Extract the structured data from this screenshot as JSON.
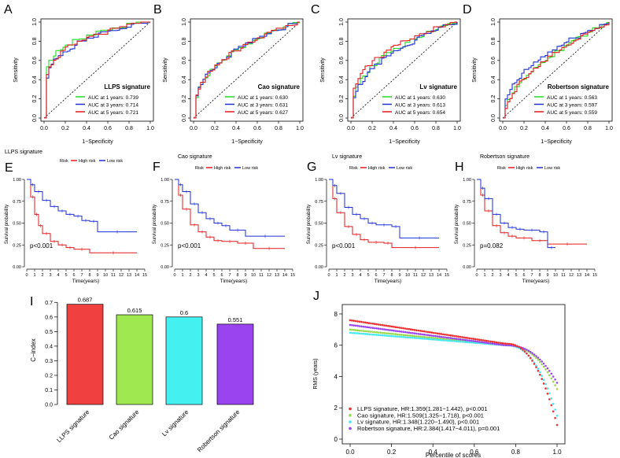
{
  "colors": {
    "green": "#22dd22",
    "blue": "#1f2fd6",
    "red": "#e41a1c",
    "bar_red": "#f04040",
    "bar_green": "#a0e850",
    "bar_cyan": "#44f0f0",
    "bar_purple": "#9a44f0",
    "rms_red": "#f03030",
    "rms_green": "#9ad84a",
    "rms_cyan": "#44e8ee",
    "rms_purple": "#9a44ee"
  },
  "roc": {
    "xlabel": "1−Specificity",
    "ylabel": "Sensitivity",
    "ticks": [
      "0.0",
      "0.2",
      "0.4",
      "0.6",
      "0.8",
      "1.0"
    ],
    "panels": [
      {
        "letter": "A",
        "title": "LLPS signature",
        "legend": [
          "AUC at 1 years: 0.739",
          "AUC at 3 years: 0.714",
          "AUC at 5 years: 0.721"
        ],
        "auc": [
          0.739,
          0.714,
          0.721
        ]
      },
      {
        "letter": "B",
        "title": "Cao signature",
        "legend": [
          "AUC at 1 years: 0.630",
          "AUC at 3 years: 0.631",
          "AUC at 5 years: 0.627"
        ],
        "auc": [
          0.63,
          0.631,
          0.627
        ]
      },
      {
        "letter": "C",
        "title": "Lv signature",
        "legend": [
          "AUC at 1 years: 0.630",
          "AUC at 3 years: 0.613",
          "AUC at 5 years: 0.654"
        ],
        "auc": [
          0.63,
          0.613,
          0.654
        ]
      },
      {
        "letter": "D",
        "title": "Robertson signature",
        "legend": [
          "AUC at 1 years: 0.563",
          "AUC at 3 years: 0.597",
          "AUC at 5 years: 0.559"
        ],
        "auc": [
          0.563,
          0.597,
          0.559
        ]
      }
    ]
  },
  "km": {
    "xlabel": "Time(years)",
    "ylabel": "Survival probability",
    "yticks": [
      "0.00",
      "0.25",
      "0.50",
      "0.75",
      "1.00"
    ],
    "xticks": [
      "0",
      "1",
      "2",
      "3",
      "4",
      "5",
      "6",
      "7",
      "8",
      "9",
      "10",
      "11",
      "12",
      "13",
      "14",
      "15"
    ],
    "legend_risk": "Risk",
    "legend_high": "High risk",
    "legend_low": "Low risk",
    "panels": [
      {
        "letter": "E",
        "title": "LLPS signature",
        "pvalue": "p<0.001",
        "high": [
          [
            0,
            1
          ],
          [
            0.5,
            0.8
          ],
          [
            1,
            0.6
          ],
          [
            1.5,
            0.47
          ],
          [
            2,
            0.38
          ],
          [
            3,
            0.29
          ],
          [
            4,
            0.25
          ],
          [
            5,
            0.22
          ],
          [
            6,
            0.2
          ],
          [
            8,
            0.16
          ],
          [
            14,
            0.16
          ]
        ],
        "low": [
          [
            0,
            1
          ],
          [
            0.5,
            0.94
          ],
          [
            1,
            0.86
          ],
          [
            2,
            0.76
          ],
          [
            3,
            0.69
          ],
          [
            4,
            0.64
          ],
          [
            5,
            0.6
          ],
          [
            6,
            0.58
          ],
          [
            7,
            0.53
          ],
          [
            8,
            0.52
          ],
          [
            9,
            0.4
          ],
          [
            14,
            0.4
          ]
        ]
      },
      {
        "letter": "F",
        "title": "Cao signature",
        "pvalue": "p<0.001",
        "high": [
          [
            0,
            1
          ],
          [
            0.5,
            0.82
          ],
          [
            1,
            0.66
          ],
          [
            2,
            0.48
          ],
          [
            3,
            0.4
          ],
          [
            4,
            0.34
          ],
          [
            5,
            0.3
          ],
          [
            6,
            0.29
          ],
          [
            8,
            0.27
          ],
          [
            10,
            0.21
          ],
          [
            14,
            0.21
          ]
        ],
        "low": [
          [
            0,
            1
          ],
          [
            0.5,
            0.94
          ],
          [
            1,
            0.86
          ],
          [
            2,
            0.72
          ],
          [
            3,
            0.62
          ],
          [
            4,
            0.55
          ],
          [
            5,
            0.5
          ],
          [
            6,
            0.47
          ],
          [
            7,
            0.42
          ],
          [
            9,
            0.35
          ],
          [
            14,
            0.35
          ]
        ]
      },
      {
        "letter": "G",
        "title": "Lv signature",
        "pvalue": "p<0.001",
        "high": [
          [
            0,
            1
          ],
          [
            0.5,
            0.78
          ],
          [
            1,
            0.62
          ],
          [
            2,
            0.46
          ],
          [
            3,
            0.37
          ],
          [
            4,
            0.31
          ],
          [
            5,
            0.28
          ],
          [
            7,
            0.27
          ],
          [
            8,
            0.22
          ],
          [
            14,
            0.22
          ]
        ],
        "low": [
          [
            0,
            1
          ],
          [
            0.5,
            0.93
          ],
          [
            1,
            0.84
          ],
          [
            2,
            0.68
          ],
          [
            3,
            0.6
          ],
          [
            4,
            0.55
          ],
          [
            5,
            0.5
          ],
          [
            6,
            0.48
          ],
          [
            8,
            0.46
          ],
          [
            9,
            0.33
          ],
          [
            14,
            0.33
          ]
        ]
      },
      {
        "letter": "H",
        "title": "Robertson signature",
        "pvalue": "p=0.082",
        "high": [
          [
            0,
            1
          ],
          [
            0.5,
            0.82
          ],
          [
            1,
            0.64
          ],
          [
            2,
            0.47
          ],
          [
            3,
            0.39
          ],
          [
            4,
            0.35
          ],
          [
            5,
            0.33
          ],
          [
            7,
            0.3
          ],
          [
            9,
            0.26
          ],
          [
            14,
            0.26
          ]
        ],
        "low": [
          [
            0,
            1
          ],
          [
            0.5,
            0.9
          ],
          [
            1,
            0.78
          ],
          [
            2,
            0.6
          ],
          [
            3,
            0.5
          ],
          [
            4,
            0.45
          ],
          [
            5,
            0.43
          ],
          [
            6,
            0.42
          ],
          [
            8,
            0.4
          ],
          [
            9,
            0.22
          ],
          [
            10,
            0.22
          ]
        ]
      }
    ]
  },
  "chart_data": [
    {
      "type": "bar",
      "panel": "I",
      "ylabel": "C−index",
      "categories": [
        "LLPS signature",
        "Cao signature",
        "Lv signature",
        "Robertson signature"
      ],
      "values": [
        0.687,
        0.615,
        0.6,
        0.551
      ],
      "labels": [
        "0.687",
        "0.615",
        "0.6",
        "0.551"
      ],
      "ylim": [
        0,
        0.75
      ],
      "yticks": [
        "0.0",
        "0.1",
        "0.2",
        "0.3",
        "0.4",
        "0.5",
        "0.6",
        "0.7"
      ]
    },
    {
      "type": "scatter",
      "panel": "J",
      "ylabel": "RMS (years)",
      "xlabel": "Percentile of scores",
      "xlim": [
        0,
        1
      ],
      "ylim": [
        0,
        8.3
      ],
      "xticks": [
        "0.0",
        "0.2",
        "0.4",
        "0.6",
        "0.8",
        "1.0"
      ],
      "yticks": [
        "0",
        "2",
        "4",
        "6",
        "8"
      ],
      "series": [
        {
          "name": "LLPS signature, HR:1.359(1.281−1.442), p<0.001",
          "start": 7.6,
          "mid": 6.1,
          "end": 0.9
        },
        {
          "name": "Cao signature, HR:1.509(1.325−1.718), p<0.001",
          "start": 7.0,
          "mid": 6.0,
          "end": 3.2
        },
        {
          "name": "Lv signature, HR:1.348(1.220−1.490), p<0.001",
          "start": 6.8,
          "mid": 6.0,
          "end": 1.5
        },
        {
          "name": "Robertson signature, HR:2.384(1.417−4.011), p=0.001",
          "start": 7.3,
          "mid": 6.0,
          "end": 3.6
        }
      ]
    }
  ]
}
